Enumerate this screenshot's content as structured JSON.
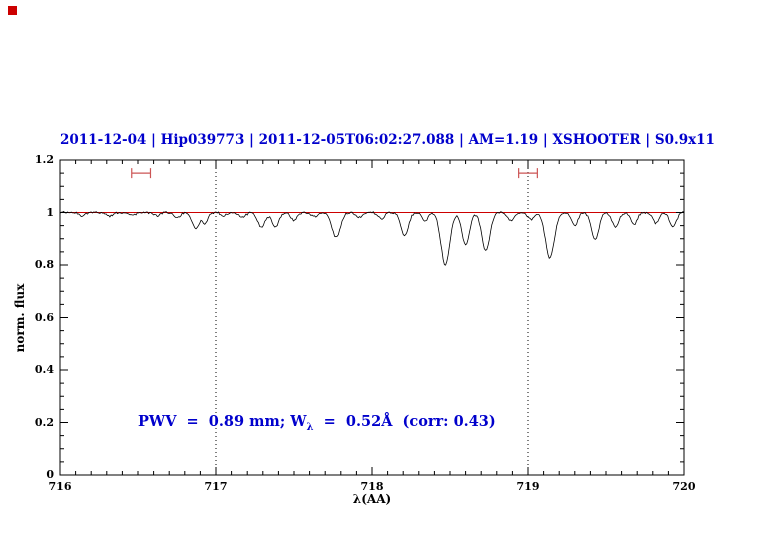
{
  "window": {
    "background": "#ffffff"
  },
  "colors": {
    "title": "#0000cc",
    "annotation": "#0000cc",
    "spectrum": "#000000",
    "continuum": "#cc0000",
    "band_marker": "#cc5555",
    "axis": "#000000"
  },
  "chart_data": {
    "type": "line",
    "title": "2011-12-04 | Hip039773 | 2011-12-05T06:02:27.088 | AM=1.19 | XSHOOTER | S0.9x11",
    "xlabel": "λ(AA)",
    "ylabel": "norm. flux",
    "xlim": [
      716,
      720
    ],
    "ylim": [
      0,
      1.2
    ],
    "xticks": [
      716,
      717,
      718,
      719,
      720
    ],
    "xtick_labels": [
      "716",
      "717",
      "718",
      "719",
      "720"
    ],
    "yticks": [
      0,
      0.2,
      0.4,
      0.6,
      0.8,
      1,
      1.2
    ],
    "ytick_labels": [
      "0",
      "0.2",
      "0.4",
      "0.6",
      "0.8",
      "1",
      "1.2"
    ],
    "x_minor_step": 0.1,
    "y_minor_step": 0.05,
    "grid": false,
    "legend": null,
    "continuum_level": 1.0,
    "dotted_vlines": [
      717,
      719
    ],
    "band_markers": [
      {
        "x": 716.52,
        "y": 1.15,
        "half_width": 0.06
      },
      {
        "x": 719.0,
        "y": 1.15,
        "half_width": 0.06
      }
    ],
    "annotation": {
      "prefix": "PWV  =  0.89 mm; W",
      "subscript": "λ",
      "suffix": "  =  0.52Å  (corr: 0.43)",
      "x": 716.5,
      "y": 0.2
    },
    "noise_amplitude": 0.004,
    "absorption_lines": [
      {
        "c": 716.14,
        "d": 0.012,
        "w": 0.02
      },
      {
        "c": 716.32,
        "d": 0.014,
        "w": 0.02
      },
      {
        "c": 716.47,
        "d": 0.01,
        "w": 0.02
      },
      {
        "c": 716.62,
        "d": 0.013,
        "w": 0.02
      },
      {
        "c": 716.75,
        "d": 0.022,
        "w": 0.02
      },
      {
        "c": 716.87,
        "d": 0.062,
        "w": 0.022
      },
      {
        "c": 716.93,
        "d": 0.04,
        "w": 0.018
      },
      {
        "c": 717.05,
        "d": 0.012,
        "w": 0.018
      },
      {
        "c": 717.17,
        "d": 0.018,
        "w": 0.02
      },
      {
        "c": 717.29,
        "d": 0.055,
        "w": 0.024
      },
      {
        "c": 717.38,
        "d": 0.058,
        "w": 0.022
      },
      {
        "c": 717.5,
        "d": 0.03,
        "w": 0.02
      },
      {
        "c": 717.63,
        "d": 0.016,
        "w": 0.02
      },
      {
        "c": 717.77,
        "d": 0.095,
        "w": 0.026
      },
      {
        "c": 717.92,
        "d": 0.018,
        "w": 0.02
      },
      {
        "c": 718.06,
        "d": 0.024,
        "w": 0.02
      },
      {
        "c": 718.21,
        "d": 0.088,
        "w": 0.024
      },
      {
        "c": 718.34,
        "d": 0.032,
        "w": 0.02
      },
      {
        "c": 718.47,
        "d": 0.2,
        "w": 0.028
      },
      {
        "c": 718.6,
        "d": 0.125,
        "w": 0.024
      },
      {
        "c": 718.73,
        "d": 0.145,
        "w": 0.026
      },
      {
        "c": 718.89,
        "d": 0.032,
        "w": 0.02
      },
      {
        "c": 719.02,
        "d": 0.028,
        "w": 0.02
      },
      {
        "c": 719.14,
        "d": 0.175,
        "w": 0.028
      },
      {
        "c": 719.3,
        "d": 0.05,
        "w": 0.02
      },
      {
        "c": 719.43,
        "d": 0.105,
        "w": 0.024
      },
      {
        "c": 719.56,
        "d": 0.055,
        "w": 0.022
      },
      {
        "c": 719.68,
        "d": 0.045,
        "w": 0.02
      },
      {
        "c": 719.82,
        "d": 0.04,
        "w": 0.02
      },
      {
        "c": 719.93,
        "d": 0.052,
        "w": 0.022
      }
    ]
  }
}
